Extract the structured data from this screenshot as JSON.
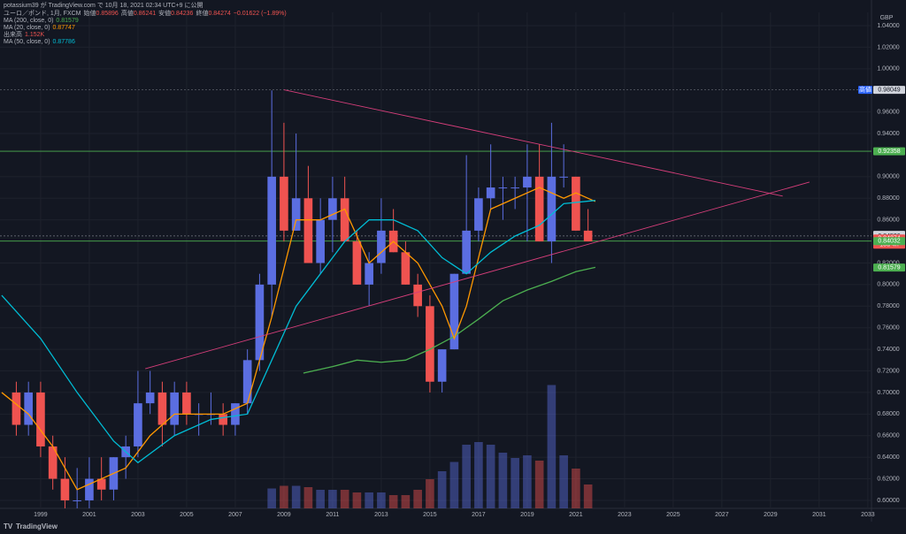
{
  "header": {
    "publisher": "potassium39 が TradingView.com で 10月 18, 2021 02:34 UTC+9 に公開",
    "symbol": "ユーロ／ポンド, 1月, FXCM",
    "ohlc": [
      {
        "label": "始値",
        "value": "0.85896"
      },
      {
        "label": "高値",
        "value": "0.86241"
      },
      {
        "label": "安値",
        "value": "0.84236"
      },
      {
        "label": "終値",
        "value": "0.84274"
      }
    ],
    "change": "−0.01622 (−1.89%)",
    "indicators": [
      {
        "label": "MA (200, close, 0)",
        "value": "0.81579",
        "color": "#4caf50"
      },
      {
        "label": "MA (20, close, 0)",
        "value": "0.87747",
        "color": "#ff9800"
      },
      {
        "label": "出来高",
        "value": "1.152K",
        "color": "#ef5350"
      },
      {
        "label": "MA (50, close, 0)",
        "value": "0.87786",
        "color": "#00bcd4"
      }
    ],
    "logo": "TradingView"
  },
  "chart_data": {
    "type": "candlestick",
    "currency": "GBP",
    "xlim": [
      1997.33,
      2033.15
    ],
    "xticks": [
      1999,
      2001,
      2003,
      2005,
      2007,
      2009,
      2011,
      2013,
      2015,
      2017,
      2019,
      2021,
      2023,
      2025,
      2027,
      2029,
      2031,
      2033
    ],
    "ylim": [
      0.5926,
      1.0523
    ],
    "yticks": [
      {
        "value": 0.6,
        "label": "0.60000"
      },
      {
        "value": 0.62,
        "label": "0.62000"
      },
      {
        "value": 0.64,
        "label": "0.64000"
      },
      {
        "value": 0.66,
        "label": "0.66000"
      },
      {
        "value": 0.68,
        "label": "0.68000"
      },
      {
        "value": 0.7,
        "label": "0.70000"
      },
      {
        "value": 0.72,
        "label": "0.72000"
      },
      {
        "value": 0.74,
        "label": "0.74000"
      },
      {
        "value": 0.76,
        "label": "0.76000"
      },
      {
        "value": 0.78,
        "label": "0.78000"
      },
      {
        "value": 0.8,
        "label": "0.80000"
      },
      {
        "value": 0.82,
        "label": "0.82000"
      },
      {
        "value": 0.86,
        "label": "0.86000"
      },
      {
        "value": 0.88,
        "label": "0.88000"
      },
      {
        "value": 0.9,
        "label": "0.90000"
      },
      {
        "value": 0.94,
        "label": "0.94000"
      },
      {
        "value": 0.96,
        "label": "0.96000"
      },
      {
        "value": 1.0,
        "label": "1.00000"
      },
      {
        "value": 1.02,
        "label": "1.02000"
      },
      {
        "value": 1.04,
        "label": "1.04000"
      }
    ],
    "grid": true,
    "up_color": "#5b6ee1",
    "down_color": "#ef5350",
    "x": [
      1998,
      1998.5,
      1999,
      1999.5,
      2000,
      2000.5,
      2001,
      2001.5,
      2002,
      2002.5,
      2003,
      2003.5,
      2004,
      2004.5,
      2005,
      2005.5,
      2006,
      2006.5,
      2007,
      2007.5,
      2008,
      2008.5,
      2009,
      2009.5,
      2010,
      2010.5,
      2011,
      2011.5,
      2012,
      2012.5,
      2013,
      2013.5,
      2014,
      2014.5,
      2015,
      2015.5,
      2016,
      2016.5,
      2017,
      2017.5,
      2018,
      2018.5,
      2019,
      2019.5,
      2020,
      2020.5,
      2021,
      2021.5
    ],
    "open": [
      0.7,
      0.67,
      0.7,
      0.65,
      0.62,
      0.6,
      0.6,
      0.62,
      0.61,
      0.64,
      0.65,
      0.69,
      0.7,
      0.67,
      0.7,
      0.68,
      0.68,
      0.68,
      0.67,
      0.69,
      0.73,
      0.8,
      0.9,
      0.85,
      0.88,
      0.82,
      0.86,
      0.88,
      0.84,
      0.8,
      0.82,
      0.85,
      0.83,
      0.8,
      0.78,
      0.71,
      0.74,
      0.81,
      0.85,
      0.88,
      0.89,
      0.89,
      0.89,
      0.9,
      0.84,
      0.9,
      0.9,
      0.85
    ],
    "high": [
      0.71,
      0.71,
      0.71,
      0.66,
      0.64,
      0.63,
      0.64,
      0.64,
      0.64,
      0.66,
      0.72,
      0.72,
      0.71,
      0.71,
      0.71,
      0.69,
      0.7,
      0.69,
      0.69,
      0.74,
      0.81,
      0.98,
      0.95,
      0.94,
      0.91,
      0.88,
      0.9,
      0.9,
      0.85,
      0.83,
      0.88,
      0.87,
      0.84,
      0.81,
      0.79,
      0.74,
      0.81,
      0.92,
      0.89,
      0.93,
      0.9,
      0.9,
      0.93,
      0.93,
      0.95,
      0.93,
      0.9,
      0.87
    ],
    "low": [
      0.66,
      0.66,
      0.64,
      0.61,
      0.59,
      0.57,
      0.59,
      0.6,
      0.6,
      0.62,
      0.64,
      0.68,
      0.65,
      0.66,
      0.67,
      0.66,
      0.67,
      0.66,
      0.66,
      0.68,
      0.72,
      0.77,
      0.84,
      0.85,
      0.82,
      0.81,
      0.83,
      0.84,
      0.8,
      0.78,
      0.81,
      0.83,
      0.8,
      0.77,
      0.7,
      0.7,
      0.74,
      0.81,
      0.84,
      0.87,
      0.86,
      0.87,
      0.84,
      0.84,
      0.82,
      0.89,
      0.85,
      0.84
    ],
    "close": [
      0.67,
      0.7,
      0.65,
      0.62,
      0.6,
      0.6,
      0.62,
      0.61,
      0.64,
      0.65,
      0.69,
      0.7,
      0.67,
      0.7,
      0.68,
      0.68,
      0.68,
      0.67,
      0.69,
      0.73,
      0.8,
      0.9,
      0.85,
      0.88,
      0.82,
      0.86,
      0.88,
      0.84,
      0.8,
      0.82,
      0.85,
      0.83,
      0.8,
      0.78,
      0.71,
      0.74,
      0.81,
      0.85,
      0.88,
      0.89,
      0.89,
      0.89,
      0.9,
      0.84,
      0.9,
      0.9,
      0.85,
      0.84
    ],
    "volume": [
      null,
      null,
      null,
      null,
      null,
      null,
      null,
      null,
      null,
      null,
      null,
      null,
      null,
      null,
      null,
      null,
      null,
      null,
      null,
      null,
      null,
      15,
      17,
      17,
      16,
      14,
      14,
      14,
      12,
      12,
      12,
      10,
      10,
      14,
      22,
      28,
      35,
      48,
      50,
      48,
      42,
      38,
      40,
      36,
      93,
      40,
      30,
      18
    ],
    "y2lim": [
      0,
      100
    ],
    "series": [
      {
        "name": "MA (200, close, 0)",
        "color": "#4caf50",
        "x": [
          2009.8,
          2011,
          2012,
          2013,
          2014,
          2015,
          2016,
          2017,
          2018,
          2019,
          2020,
          2021,
          2021.8
        ],
        "values": [
          0.718,
          0.724,
          0.73,
          0.728,
          0.73,
          0.74,
          0.752,
          0.768,
          0.785,
          0.795,
          0.803,
          0.812,
          0.816
        ]
      },
      {
        "name": "MA (20, close, 0)",
        "color": "#ff9800",
        "x": [
          1997.4,
          1998.5,
          1999.5,
          2000.5,
          2001.5,
          2002.5,
          2003.5,
          2004.5,
          2005.5,
          2006.5,
          2007.5,
          2008.5,
          2009.5,
          2010.5,
          2011.5,
          2012.5,
          2013.5,
          2014.5,
          2015.5,
          2016,
          2016.5,
          2017.5,
          2018.5,
          2019.5,
          2020.5,
          2021,
          2021.8
        ],
        "values": [
          0.7,
          0.68,
          0.65,
          0.61,
          0.62,
          0.63,
          0.66,
          0.68,
          0.68,
          0.68,
          0.69,
          0.77,
          0.86,
          0.86,
          0.87,
          0.82,
          0.84,
          0.82,
          0.78,
          0.75,
          0.78,
          0.87,
          0.88,
          0.89,
          0.88,
          0.885,
          0.877
        ]
      },
      {
        "name": "MA (50, close, 0)",
        "color": "#00bcd4",
        "x": [
          1997.4,
          1999,
          2000.5,
          2002,
          2003,
          2004.5,
          2006,
          2007.5,
          2008.5,
          2009.5,
          2010.5,
          2011.5,
          2012.5,
          2013.5,
          2014.5,
          2015.5,
          2016.5,
          2017.5,
          2018.5,
          2019.5,
          2020.5,
          2021.8
        ],
        "values": [
          0.79,
          0.75,
          0.7,
          0.655,
          0.635,
          0.66,
          0.675,
          0.68,
          0.73,
          0.78,
          0.81,
          0.84,
          0.86,
          0.86,
          0.85,
          0.825,
          0.81,
          0.83,
          0.845,
          0.855,
          0.875,
          0.878
        ]
      }
    ],
    "trendlines": [
      {
        "color": "#d63e7a",
        "x": [
          2009.0,
          2029.5
        ],
        "values": [
          0.9805,
          0.882
        ]
      },
      {
        "color": "#d63e7a",
        "x": [
          2003.3,
          2030.6
        ],
        "values": [
          0.722,
          0.895
        ]
      }
    ],
    "levels": [
      {
        "value": 0.98049,
        "color": "#5d606b",
        "tag": "高値"
      },
      {
        "value": 0.92358,
        "color": "#4caf50"
      },
      {
        "value": 0.84607,
        "color": "#2a2e39"
      },
      {
        "value": 0.84506,
        "color": "#787b86"
      },
      {
        "value": 0.84274,
        "color": "#ef5350",
        "countdown": "13d 4h"
      },
      {
        "value": 0.84032,
        "color": "#4caf50"
      },
      {
        "value": 0.81579,
        "color": "#4caf50"
      }
    ]
  }
}
